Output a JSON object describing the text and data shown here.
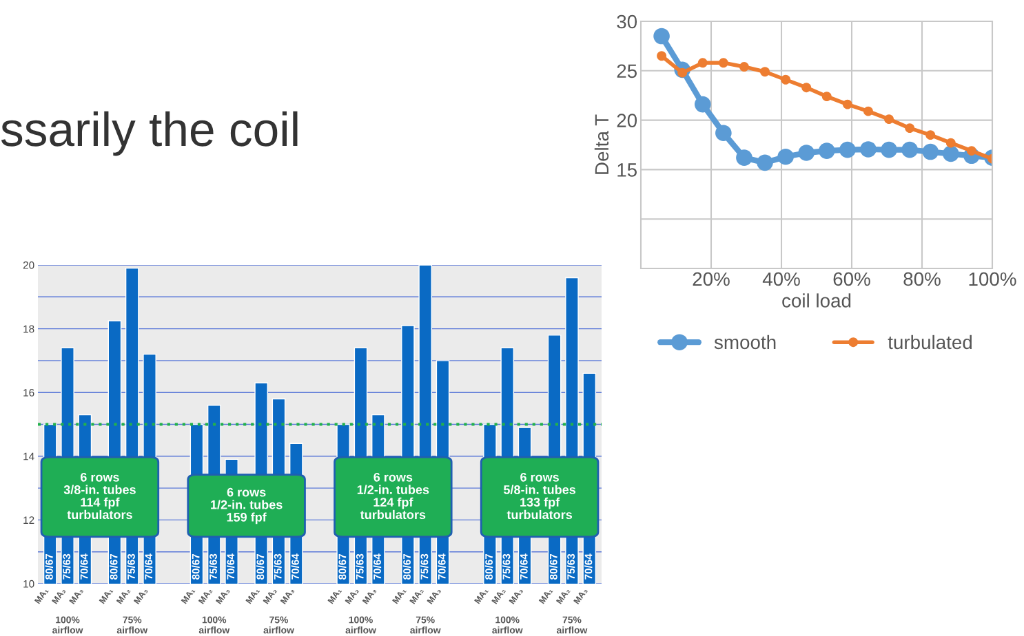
{
  "chart_data": [
    {
      "type": "bar",
      "categories": [
        "MA₁",
        "MA₂",
        "MA₃",
        "MA₁",
        "MA₂",
        "MA₃",
        "MA₁",
        "MA₂",
        "MA₃",
        "MA₁",
        "MA₂",
        "MA₃",
        "MA₁",
        "MA₂",
        "MA₃",
        "MA₁",
        "MA₂",
        "MA₃",
        "MA₁",
        "MA₂",
        "MA₃",
        "MA₁",
        "MA₂",
        "MA₃"
      ],
      "values": [
        15.0,
        17.4,
        15.3,
        18.25,
        19.9,
        17.2,
        15.0,
        15.6,
        13.9,
        16.3,
        15.8,
        14.4,
        15.0,
        17.4,
        15.3,
        18.1,
        20.0,
        17.0,
        15.0,
        17.4,
        14.9,
        17.8,
        19.6,
        16.6
      ],
      "color": "#0a6ac4",
      "ylim": [
        10,
        20
      ],
      "yticks": [
        10,
        {
          "value": 11,
          "label": null
        },
        12,
        {
          "value": 13,
          "label": null
        },
        14,
        {
          "value": 15,
          "label": null
        },
        16,
        {
          "value": 17,
          "label": null
        },
        18,
        {
          "value": 19,
          "label": null
        },
        20
      ],
      "grid": "y",
      "ref_lines": [
        {
          "axis": "y",
          "value": 15,
          "color": "#22b14c",
          "line_style": "dotted"
        }
      ],
      "annotations": [
        "80/67",
        "75/63",
        "70/64",
        "80/67",
        "75/63",
        "70/64",
        "80/67",
        "75/63",
        "70/64",
        "80/67",
        "75/63",
        "70/64",
        "80/67",
        "75/63",
        "70/64",
        "80/67",
        "75/63",
        "70/64",
        "80/67",
        "75/63",
        "70/64",
        "80/67",
        "75/63",
        "70/64",
        "100%\nairflow",
        "75%\nairflow",
        "100%\nairflow",
        "75%\nairflow",
        "100%\nairflow",
        "75%\nairflow",
        "100%\nairflow",
        "75%\nairflow",
        "6 rows\n3/8-in. tubes\n114 fpf\nturbulators",
        "6 rows\n1/2-in. tubes\n159 fpf",
        "6 rows\n1/2-in. tubes\n124 fpf\nturbulators",
        "6 rows\n5/8-in. tubes\n133 fpf\nturbulators",
        "ssarily the coil"
      ]
    },
    {
      "type": "line",
      "x": [
        5.9,
        11.8,
        17.6,
        23.5,
        29.4,
        35.3,
        41.2,
        47.1,
        52.9,
        58.8,
        64.7,
        70.6,
        76.5,
        82.4,
        88.2,
        94.1,
        100
      ],
      "series": [
        {
          "name": "smooth",
          "color": "#5b9bd5",
          "values": [
            28.5,
            25.1,
            21.6,
            18.7,
            16.2,
            15.7,
            16.3,
            16.7,
            16.9,
            17.0,
            17.05,
            17.0,
            17.0,
            16.8,
            16.6,
            16.4,
            16.2
          ]
        },
        {
          "name": "turbulated",
          "color": "#ed7d31",
          "values": [
            26.5,
            24.8,
            25.8,
            25.8,
            25.4,
            24.9,
            24.1,
            23.3,
            22.4,
            21.6,
            20.9,
            20.1,
            19.2,
            18.5,
            17.7,
            16.9,
            16.1
          ]
        }
      ],
      "xlabel": "coil load",
      "ylabel": "Delta T",
      "xlim": [
        0,
        100
      ],
      "xticks": [
        {
          "value": 0,
          "label": null
        },
        {
          "value": 20,
          "label": "20%"
        },
        {
          "value": 40,
          "label": "40%"
        },
        {
          "value": 60,
          "label": "60%"
        },
        {
          "value": 80,
          "label": "80%"
        },
        {
          "value": 100,
          "label": "100%"
        }
      ],
      "ylim": [
        5,
        30
      ],
      "yticks": [
        {
          "value": 5,
          "label": null
        },
        {
          "value": 10,
          "label": null
        },
        15,
        20,
        25,
        30
      ],
      "grid": true,
      "legend": "bottom",
      "marker": "circle",
      "line_style": "solid"
    }
  ]
}
